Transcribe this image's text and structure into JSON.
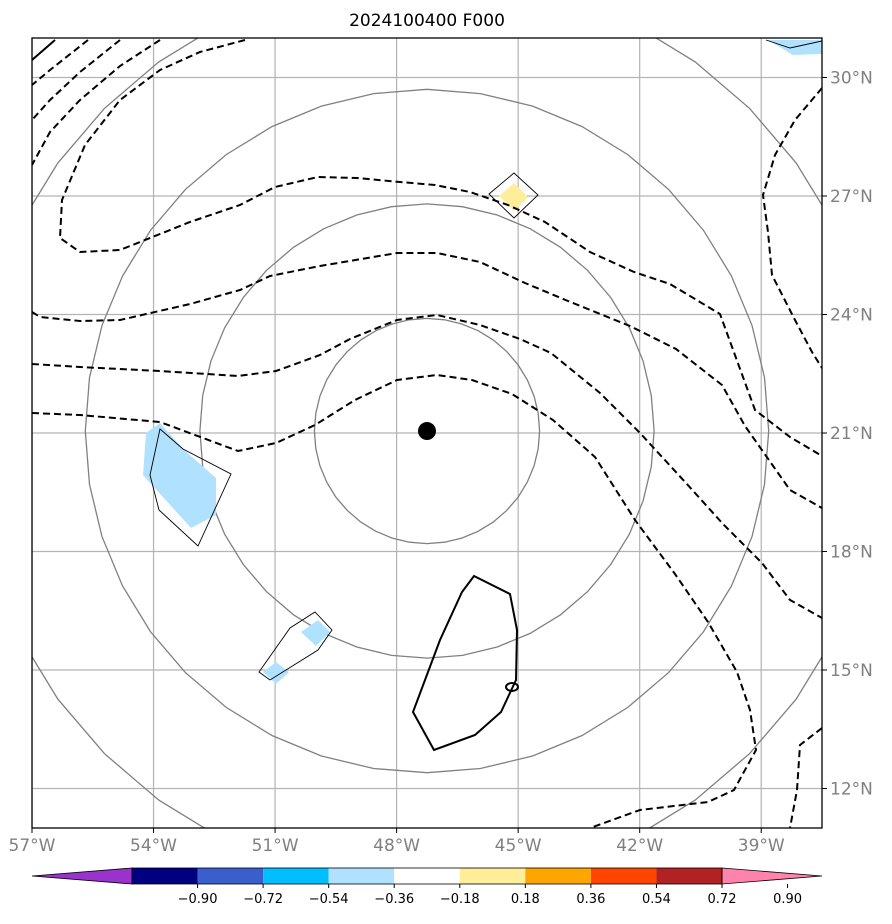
{
  "title": "2024100400 F000",
  "map": {
    "lon_range": [
      -57,
      -37.5
    ],
    "lat_range": [
      11,
      31
    ],
    "lat_ticks": [
      {
        "value": 30,
        "label": "30°N"
      },
      {
        "value": 27,
        "label": "27°N"
      },
      {
        "value": 24,
        "label": "24°N"
      },
      {
        "value": 21,
        "label": "21°N"
      },
      {
        "value": 18,
        "label": "18°N"
      },
      {
        "value": 15,
        "label": "15°N"
      },
      {
        "value": 12,
        "label": "12°N"
      }
    ],
    "lon_ticks": [
      {
        "value": -57,
        "label": "57°W"
      },
      {
        "value": -54,
        "label": "54°W"
      },
      {
        "value": -51,
        "label": "51°W"
      },
      {
        "value": -48,
        "label": "48°W"
      },
      {
        "value": -45,
        "label": "45°W"
      },
      {
        "value": -42,
        "label": "42°W"
      },
      {
        "value": -39,
        "label": "39°W"
      }
    ],
    "grid": true,
    "storm_center": {
      "lon": -47.25,
      "lat": 21.05
    },
    "range_rings_deg": [
      2.85,
      5.75,
      8.65,
      11.55
    ],
    "line_colors": {
      "grid": "#b4b4b4",
      "rings": "#808080",
      "contours": "#000000"
    }
  },
  "colorbar": {
    "colors": [
      "#9933cc",
      "#000080",
      "#3a5fcd",
      "#00bfff",
      "#b0e2ff",
      "#ffffff",
      "#ffee99",
      "#ffa500",
      "#ff4500",
      "#b22222",
      "#ff83aa"
    ],
    "labels": [
      "−0.90",
      "−0.72",
      "−0.54",
      "−0.36",
      "−0.18",
      "0.18",
      "0.36",
      "0.54",
      "0.72",
      "0.90"
    ],
    "extend": "both"
  }
}
